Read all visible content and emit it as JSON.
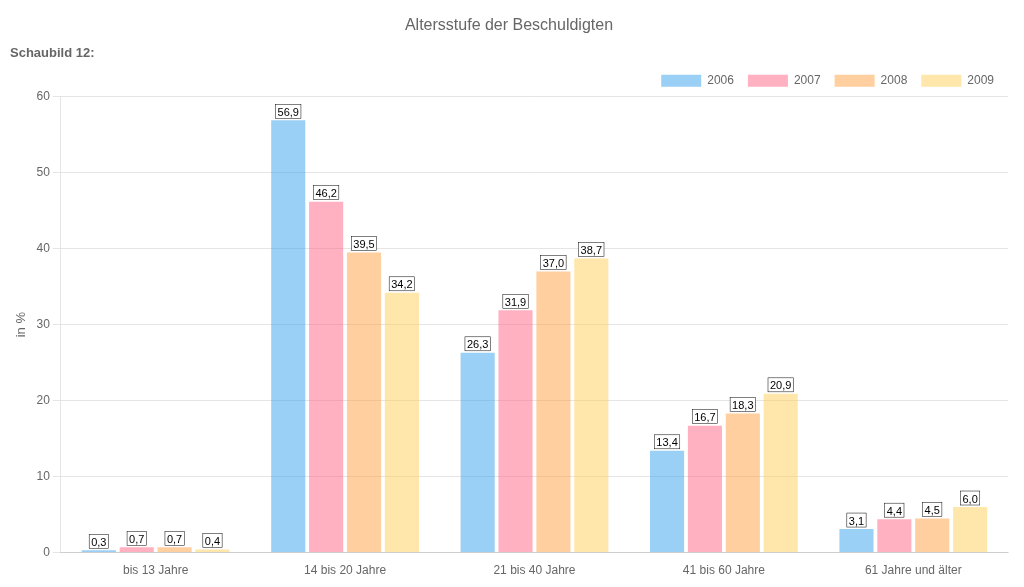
{
  "chart_data": {
    "type": "bar",
    "title": "Altersstufe der Beschuldigten",
    "subtitle": "Schaubild 12:",
    "ylabel": "in %",
    "categories": [
      "bis 13 Jahre",
      "14 bis 20 Jahre",
      "21 bis 40 Jahre",
      "41 bis 60 Jahre",
      "61 Jahre und älter"
    ],
    "series": [
      {
        "name": "2006",
        "values": [
          0.3,
          56.9,
          26.3,
          13.4,
          3.1
        ],
        "value_labels": [
          "0,3",
          "56,9",
          "26,3",
          "13,4",
          "3,1"
        ]
      },
      {
        "name": "2007",
        "values": [
          0.7,
          46.2,
          31.9,
          16.7,
          4.4
        ],
        "value_labels": [
          "0,7",
          "46,2",
          "31,9",
          "16,7",
          "4,4"
        ]
      },
      {
        "name": "2008",
        "values": [
          0.7,
          39.5,
          37.0,
          18.3,
          4.5
        ],
        "value_labels": [
          "0,7",
          "39,5",
          "37,0",
          "18,3",
          "4,5"
        ]
      },
      {
        "name": "2009",
        "values": [
          0.4,
          34.2,
          38.7,
          20.9,
          6.0
        ],
        "value_labels": [
          "0,4",
          "34,2",
          "38,7",
          "20,9",
          "6,0"
        ]
      }
    ],
    "ylim": [
      0,
      60
    ],
    "yticks": [
      0,
      10,
      20,
      30,
      40,
      50,
      60
    ],
    "grid": true,
    "legend": "upper right",
    "data_labels": true
  }
}
